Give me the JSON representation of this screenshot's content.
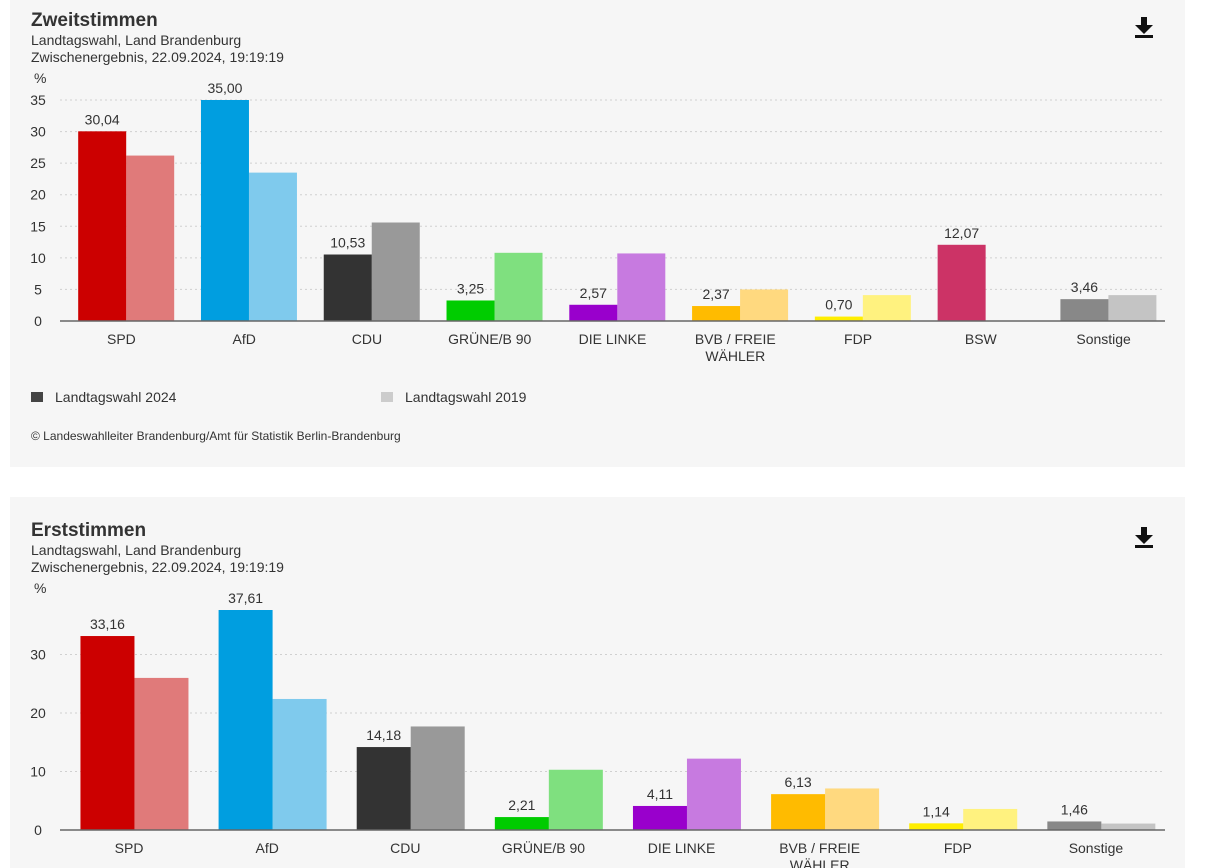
{
  "chart_data": [
    {
      "type": "bar",
      "title": "Zweitstimmen",
      "subtitle_1": "Landtagswahl, Land Brandenburg",
      "subtitle_2": "Zwischenergebnis, 22.09.2024, 19:19:19",
      "ylabel": "%",
      "ylim": [
        0,
        35
      ],
      "yticks": [
        0,
        5,
        10,
        15,
        20,
        25,
        30,
        35
      ],
      "categories": [
        "SPD",
        "AfD",
        "CDU",
        "GRÜNE/B 90",
        "DIE LINKE",
        "BVB / FREIE WÄHLER",
        "FDP",
        "BSW",
        "Sonstige"
      ],
      "series": [
        {
          "name": "Landtagswahl 2024",
          "values": [
            30.04,
            35.0,
            10.53,
            3.25,
            2.57,
            2.37,
            0.7,
            12.07,
            3.46
          ],
          "labels": [
            "30,04",
            "35,00",
            "10,53",
            "3,25",
            "2,57",
            "2,37",
            "0,70",
            "12,07",
            "3,46"
          ]
        },
        {
          "name": "Landtagswahl 2019",
          "values": [
            26.2,
            23.5,
            15.6,
            10.8,
            10.7,
            5.0,
            4.1,
            null,
            4.1
          ]
        }
      ],
      "colors_2024": [
        "#cc0000",
        "#009ee0",
        "#333333",
        "#00cc00",
        "#9900cc",
        "#ffbb00",
        "#ffee00",
        "#cc3366",
        "#888888"
      ],
      "colors_2019": [
        "#e07a7a",
        "#7fcaed",
        "#999999",
        "#7fe07f",
        "#c77ae0",
        "#ffd97f",
        "#fff27f",
        "#e699b3",
        "#c4c4c4"
      ],
      "legend_2024": "Landtagswahl 2024",
      "legend_2019": "Landtagswahl 2019",
      "legend_2024_color": "#444444",
      "legend_2019_color": "#cccccc",
      "copyright": "© Landeswahlleiter Brandenburg/Amt für Statistik Berlin-Brandenburg"
    },
    {
      "type": "bar",
      "title": "Erststimmen",
      "subtitle_1": "Landtagswahl, Land Brandenburg",
      "subtitle_2": "Zwischenergebnis, 22.09.2024, 19:19:19",
      "ylabel": "%",
      "ylim": [
        0,
        37.61
      ],
      "yticks": [
        0,
        10,
        20,
        30
      ],
      "categories": [
        "SPD",
        "AfD",
        "CDU",
        "GRÜNE/B 90",
        "DIE LINKE",
        "BVB / FREIE WÄHLER",
        "FDP",
        "Sonstige"
      ],
      "series": [
        {
          "name": "Landtagswahl 2024",
          "values": [
            33.16,
            37.61,
            14.18,
            2.21,
            4.11,
            6.13,
            1.14,
            1.46
          ],
          "labels": [
            "33,16",
            "37,61",
            "14,18",
            "2,21",
            "4,11",
            "6,13",
            "1,14",
            "1,46"
          ]
        },
        {
          "name": "Landtagswahl 2019",
          "values": [
            26.0,
            22.4,
            17.7,
            10.3,
            12.2,
            7.1,
            3.6,
            1.1
          ]
        }
      ],
      "colors_2024": [
        "#cc0000",
        "#009ee0",
        "#333333",
        "#00cc00",
        "#9900cc",
        "#ffbb00",
        "#ffee00",
        "#888888"
      ],
      "colors_2019": [
        "#e07a7a",
        "#7fcaed",
        "#999999",
        "#7fe07f",
        "#c77ae0",
        "#ffd97f",
        "#fff27f",
        "#c4c4c4"
      ]
    }
  ]
}
